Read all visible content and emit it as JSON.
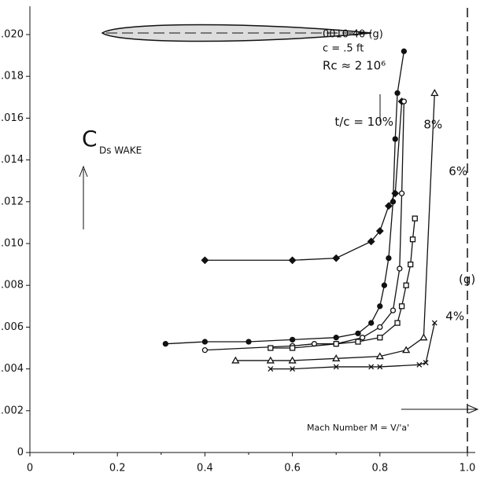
{
  "chart_data": {
    "type": "line",
    "x_label": "Mach Number  M = V/'a'",
    "y_label": "C",
    "y_label_sub": "Ds WAKE",
    "annotations": [
      "0010-40  (g)",
      "c = .5 ft",
      "Rc ≈ 2 10⁶",
      "(g)"
    ],
    "xlim": [
      0,
      1.0
    ],
    "ylim": [
      0,
      0.02
    ],
    "xticks": [
      0,
      0.2,
      0.4,
      0.6,
      0.8,
      {
        "value": 1,
        "label": "1.0"
      }
    ],
    "yticks": [
      0,
      {
        "value": 0.002,
        "label": ".002"
      },
      {
        "value": 0.004,
        "label": ".004"
      },
      {
        "value": 0.006,
        "label": ".006"
      },
      {
        "value": 0.008,
        "label": ".008"
      },
      {
        "value": 0.01,
        "label": ".010"
      },
      {
        "value": 0.012,
        "label": ".012"
      },
      {
        "value": 0.014,
        "label": ".014"
      },
      {
        "value": 0.016,
        "label": ".016"
      },
      {
        "value": 0.018,
        "label": ".018"
      },
      {
        "value": 0.02,
        "label": ".020"
      }
    ],
    "color": "#111111",
    "series": [
      {
        "marker": "diamond",
        "x": [
          0.4,
          0.6,
          0.7,
          0.78,
          0.8,
          0.82,
          0.835,
          0.85
        ],
        "values": [
          0.0092,
          0.0092,
          0.0093,
          0.0101,
          0.0106,
          0.0118,
          0.0124,
          0.0168
        ]
      },
      {
        "name": "t/c = 10%",
        "marker": "dot",
        "x": [
          0.31,
          0.4,
          0.5,
          0.6,
          0.7,
          0.75,
          0.78,
          0.8,
          0.81,
          0.82,
          0.83,
          0.835,
          0.84,
          0.855
        ],
        "values": [
          0.0052,
          0.0053,
          0.0053,
          0.0054,
          0.0055,
          0.0057,
          0.0062,
          0.007,
          0.008,
          0.0093,
          0.012,
          0.015,
          0.0172,
          0.0192
        ]
      },
      {
        "name": "8%",
        "marker": "circle",
        "x": [
          0.4,
          0.6,
          0.65,
          0.7,
          0.76,
          0.8,
          0.83,
          0.845,
          0.85,
          0.855
        ],
        "values": [
          0.0049,
          0.0051,
          0.0052,
          0.0052,
          0.0055,
          0.006,
          0.0068,
          0.0088,
          0.0124,
          0.0168
        ]
      },
      {
        "marker": "square",
        "x": [
          0.55,
          0.6,
          0.7,
          0.75,
          0.8,
          0.84,
          0.85,
          0.86,
          0.87,
          0.875,
          0.88
        ],
        "values": [
          0.005,
          0.005,
          0.0052,
          0.0053,
          0.0055,
          0.0062,
          0.007,
          0.008,
          0.009,
          0.0102,
          0.0112
        ]
      },
      {
        "name": "6%",
        "marker": "triangle",
        "x": [
          0.47,
          0.55,
          0.6,
          0.7,
          0.8,
          0.86,
          0.9,
          0.925
        ],
        "values": [
          0.0044,
          0.0044,
          0.0044,
          0.0045,
          0.0046,
          0.0049,
          0.0055,
          0.0172
        ]
      },
      {
        "name": "4%",
        "marker": "x",
        "x": [
          0.55,
          0.6,
          0.7,
          0.78,
          0.8,
          0.89,
          0.905,
          0.925
        ],
        "values": [
          0.004,
          0.004,
          0.0041,
          0.0041,
          0.0041,
          0.0042,
          0.0043,
          0.0062
        ]
      }
    ]
  }
}
